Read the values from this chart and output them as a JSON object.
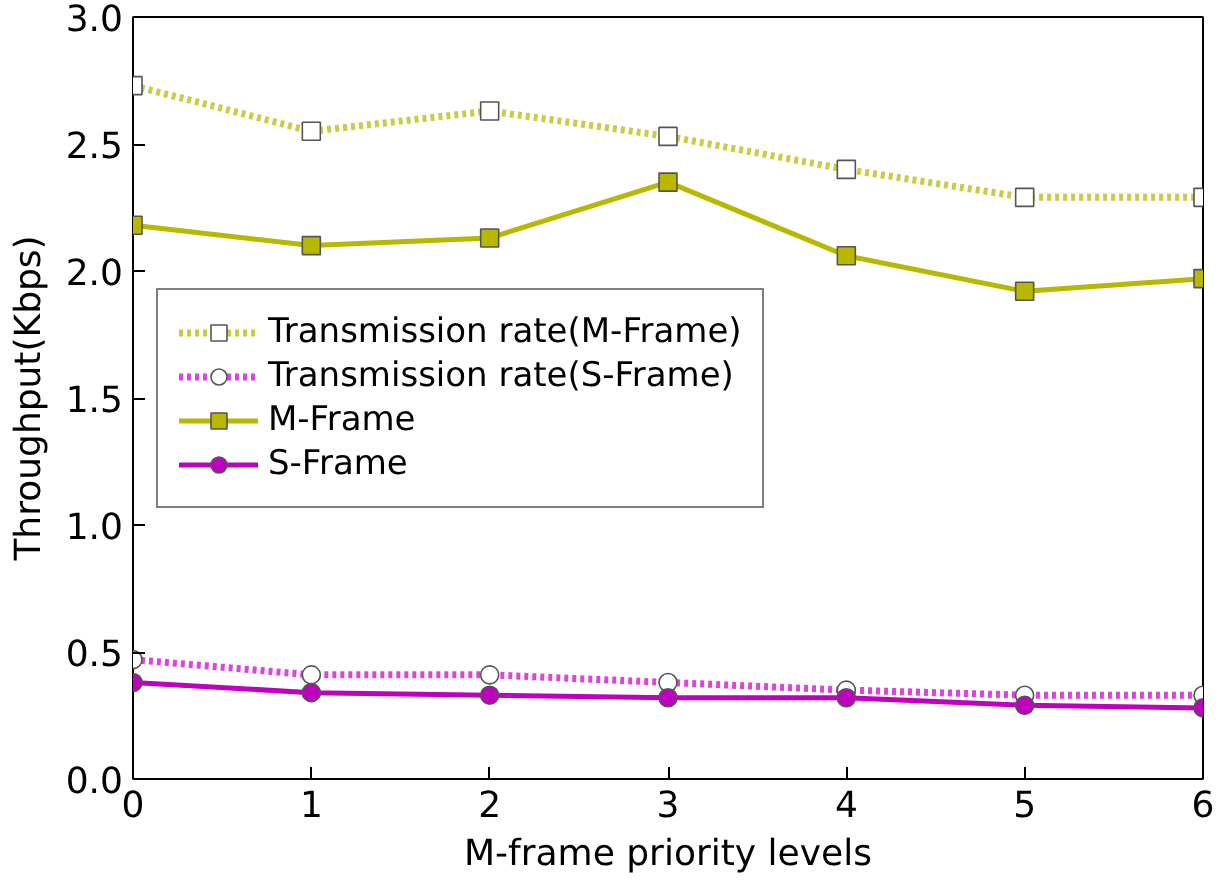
{
  "chart_data": {
    "type": "line",
    "xlabel": "M-frame priority levels",
    "ylabel": "Throughput(Kbps)",
    "x": [
      0,
      1,
      2,
      3,
      4,
      5,
      6
    ],
    "series": [
      {
        "name": "Transmission rate(M-Frame)",
        "color": "#cccc44",
        "marker": "square",
        "line_style": "dotted",
        "values": [
          2.73,
          2.55,
          2.63,
          2.53,
          2.4,
          2.29,
          2.29
        ]
      },
      {
        "name": "Transmission rate(S-Frame)",
        "color": "#dd44dd",
        "marker": "circle",
        "line_style": "dotted",
        "values": [
          0.47,
          0.41,
          0.41,
          0.38,
          0.35,
          0.33,
          0.33
        ]
      },
      {
        "name": "M-Frame",
        "color": "#b8b800",
        "marker": "square",
        "line_style": "solid",
        "values": [
          2.18,
          2.1,
          2.13,
          2.35,
          2.06,
          1.92,
          1.97
        ]
      },
      {
        "name": "S-Frame",
        "color": "#c000c0",
        "marker": "circle",
        "line_style": "solid",
        "values": [
          0.38,
          0.34,
          0.33,
          0.32,
          0.32,
          0.29,
          0.28
        ]
      }
    ],
    "xlim": [
      0,
      6
    ],
    "ylim": [
      0,
      3.0
    ],
    "xticks": [
      0,
      1,
      2,
      3,
      4,
      5,
      6
    ],
    "yticks": [
      {
        "value": 0,
        "label": "0.0"
      },
      {
        "value": 0.5,
        "label": "0.5"
      },
      {
        "value": 1,
        "label": "1.0"
      },
      {
        "value": 1.5,
        "label": "1.5"
      },
      {
        "value": 2,
        "label": "2.0"
      },
      {
        "value": 2.5,
        "label": "2.5"
      },
      {
        "value": 3,
        "label": "3.0"
      }
    ],
    "grid": false,
    "legend": "left"
  }
}
